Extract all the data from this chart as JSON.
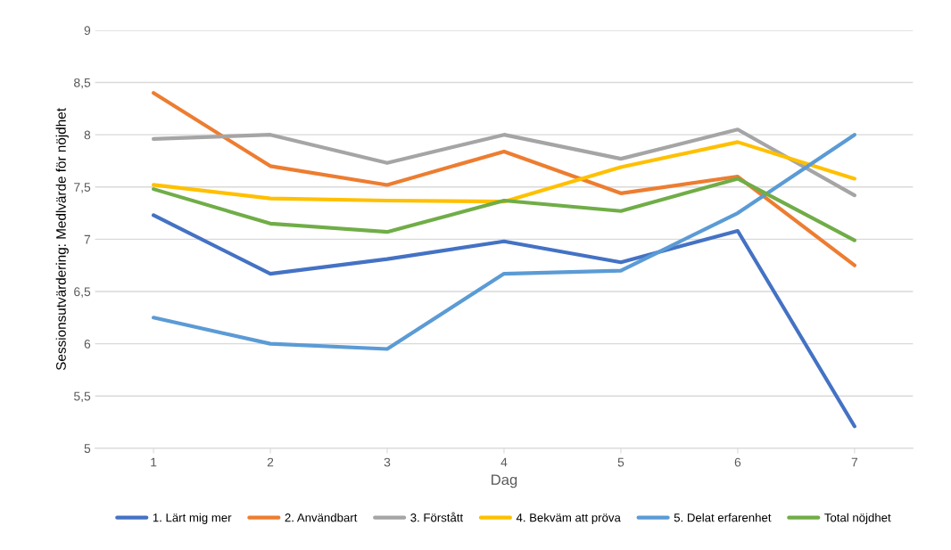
{
  "chart_data": {
    "type": "line",
    "xlabel": "Dag",
    "ylabel": "Sessionsutvärdering: Medlvärde för nöjdhet",
    "categories": [
      "1",
      "2",
      "3",
      "4",
      "5",
      "6",
      "7"
    ],
    "series": [
      {
        "name": "1. Lärt mig mer",
        "color": "#4472c4",
        "values": [
          7.23,
          6.67,
          6.81,
          6.98,
          6.78,
          7.08,
          5.21
        ]
      },
      {
        "name": "2. Användbart",
        "color": "#ed7d31",
        "values": [
          8.4,
          7.7,
          7.52,
          7.84,
          7.44,
          7.6,
          6.75
        ]
      },
      {
        "name": "3. Förstått",
        "color": "#a5a5a5",
        "values": [
          7.96,
          8.0,
          7.73,
          8.0,
          7.77,
          8.05,
          7.42
        ]
      },
      {
        "name": "4. Bekväm att pröva",
        "color": "#ffc000",
        "values": [
          7.52,
          7.39,
          7.37,
          7.36,
          7.69,
          7.93,
          7.58
        ]
      },
      {
        "name": "5. Delat erfarenhet",
        "color": "#5b9bd5",
        "values": [
          6.25,
          6.0,
          5.95,
          6.67,
          6.7,
          7.25,
          8.0
        ]
      },
      {
        "name": "Total nöjdhet",
        "color": "#70ad47",
        "values": [
          7.48,
          7.15,
          7.07,
          7.37,
          7.27,
          7.58,
          6.99
        ]
      }
    ],
    "ylim": [
      5,
      9
    ],
    "yticks": [
      5,
      {
        "value": 5.5,
        "label": "5,5"
      },
      6,
      {
        "value": 6.5,
        "label": "6,5"
      },
      7,
      {
        "value": 7.5,
        "label": "7,5"
      },
      8,
      {
        "value": 8.5,
        "label": "8,5"
      },
      9
    ],
    "grid": "y",
    "legend": "bottom",
    "line_style": "solid"
  }
}
